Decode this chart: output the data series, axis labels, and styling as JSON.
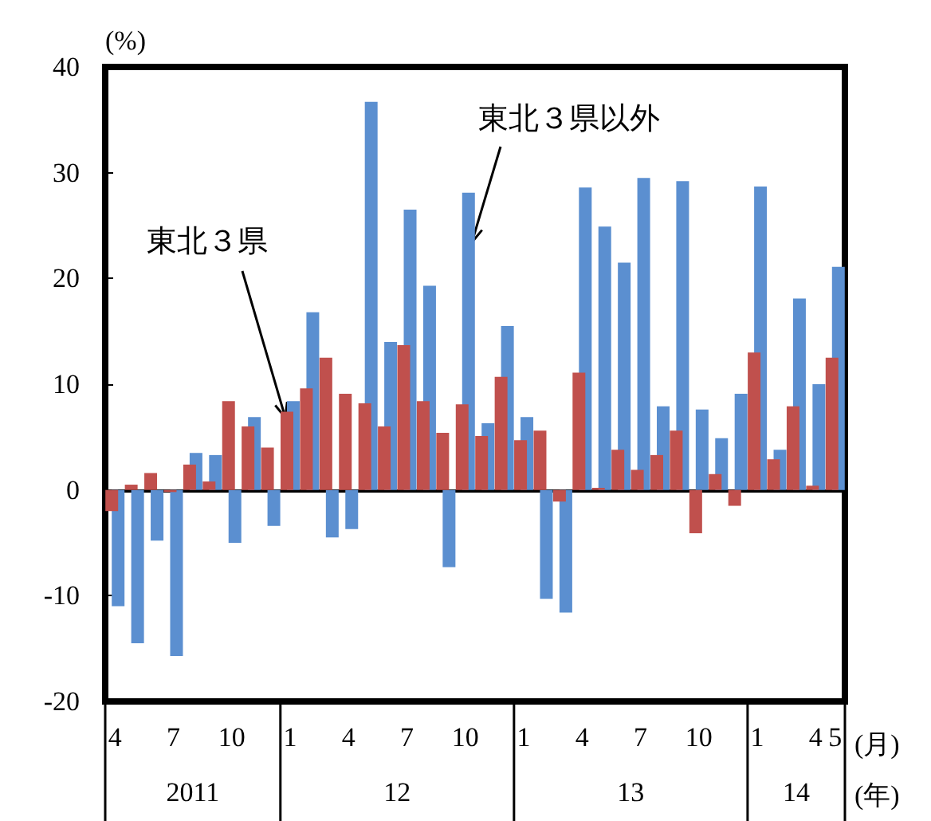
{
  "chart_data": {
    "type": "bar",
    "ylabel": "(%)",
    "categories": [
      "4",
      null,
      null,
      "7",
      null,
      null,
      "10",
      null,
      null,
      "1",
      null,
      null,
      "4",
      null,
      null,
      "7",
      null,
      null,
      "10",
      null,
      null,
      "1",
      null,
      null,
      "4",
      null,
      null,
      "7",
      null,
      null,
      "10",
      null,
      null,
      "1",
      null,
      null,
      "4",
      "5"
    ],
    "series": [
      {
        "name": "東北３県",
        "color": "#c0504d",
        "values": [
          -2.0,
          0.5,
          1.6,
          -0.2,
          2.4,
          0.8,
          8.4,
          6.0,
          4.0,
          7.4,
          9.6,
          12.5,
          9.1,
          8.2,
          6.0,
          13.7,
          8.4,
          5.4,
          8.1,
          5.1,
          10.7,
          4.7,
          5.6,
          -1.1,
          11.1,
          0.2,
          3.8,
          1.9,
          3.3,
          5.6,
          -4.1,
          1.5,
          -1.5,
          13.0,
          2.9,
          7.9,
          0.4,
          12.5
        ]
      },
      {
        "name": "東北３県以外",
        "color": "#5b8fd0",
        "values": [
          -11.0,
          -14.5,
          -4.8,
          -15.7,
          3.5,
          3.3,
          -5.0,
          6.9,
          -3.4,
          8.4,
          16.8,
          -4.5,
          -3.7,
          36.7,
          14.0,
          26.5,
          19.3,
          -7.3,
          28.1,
          6.3,
          15.5,
          6.9,
          -10.3,
          -11.6,
          28.6,
          24.9,
          21.5,
          29.5,
          7.9,
          29.2,
          7.6,
          4.9,
          9.1,
          28.7,
          3.8,
          18.1,
          10.0,
          21.1
        ]
      }
    ],
    "ylim": [
      -20,
      40
    ],
    "yticks": [
      -20,
      -10,
      0,
      10,
      20,
      30,
      40
    ],
    "annotations": [
      "2011",
      "12",
      "13",
      "14",
      "(月)",
      "(年)"
    ],
    "legend": false
  }
}
